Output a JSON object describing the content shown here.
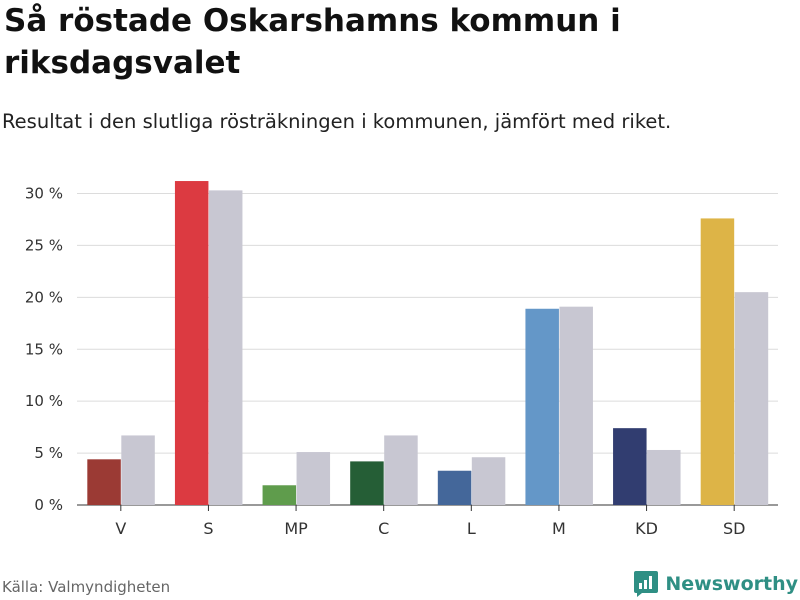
{
  "title": "Så röstade Oskarshamns kommun i riksdagsvalet",
  "subtitle": "Resultat i den slutliga rösträkningen i kommunen, jämfört med riket.",
  "source": "Källa: Valmyndigheten",
  "brand": {
    "name": "Newsworthy",
    "icon": "newsworthy-logo-icon",
    "color": "#2f8f84"
  },
  "chart_data": {
    "type": "bar",
    "categories": [
      "V",
      "S",
      "MP",
      "C",
      "L",
      "M",
      "KD",
      "SD"
    ],
    "series": [
      {
        "values": [
          4.4,
          31.2,
          1.9,
          4.2,
          3.3,
          18.9,
          7.4,
          27.6
        ],
        "colors": [
          "#9b3a34",
          "#dc3a41",
          "#5f9c4c",
          "#255e36",
          "#44679a",
          "#6497c8",
          "#313d70",
          "#ddb447"
        ]
      },
      {
        "values": [
          6.7,
          30.3,
          5.1,
          6.7,
          4.6,
          19.1,
          5.3,
          20.5
        ],
        "color": "#c8c7d2"
      }
    ],
    "yticks": [
      0,
      5,
      10,
      15,
      20,
      25,
      30
    ],
    "ytick_suffix": " %",
    "ylim": [
      0,
      32
    ],
    "grid": true,
    "xlabel": "",
    "ylabel": ""
  }
}
